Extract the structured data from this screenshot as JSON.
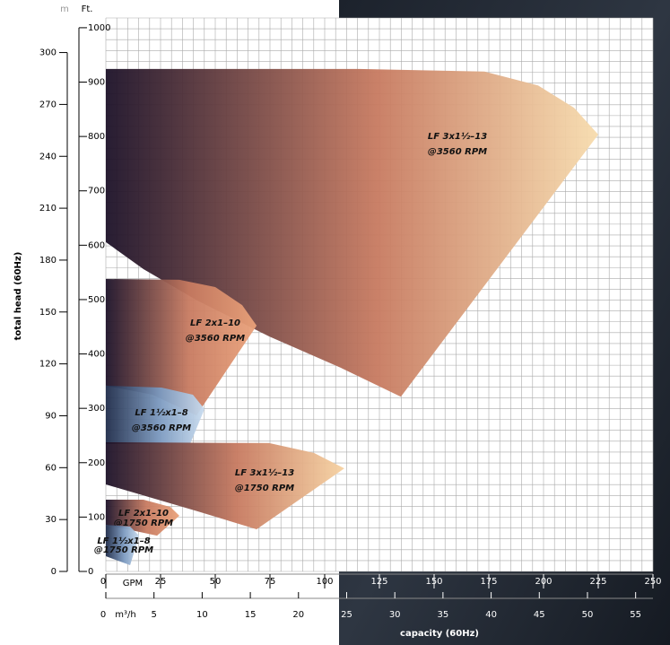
{
  "chart_data": {
    "type": "region",
    "y_label": "total head (60Hz)",
    "x_label": "capacity (60Hz)",
    "y_unit": "m",
    "y2_unit": "Ft.",
    "x_unit": "GPM",
    "x2_unit": "m³/h",
    "xlim": [
      0,
      250
    ],
    "xticks": [
      0,
      25,
      50,
      75,
      100,
      125,
      150,
      175,
      200,
      225,
      250
    ],
    "x2lim": [
      0,
      56.8
    ],
    "x2ticks": [
      0,
      5,
      10,
      15,
      20,
      25,
      30,
      35,
      40,
      45,
      50,
      55
    ],
    "ylim": [
      0,
      320
    ],
    "yticks": [
      0,
      30,
      60,
      90,
      120,
      150,
      180,
      210,
      240,
      270,
      300
    ],
    "y2lim": [
      0,
      1018
    ],
    "y2ticks": [
      0,
      100,
      200,
      300,
      400,
      500,
      600,
      700,
      800,
      900,
      1000
    ],
    "grid": true,
    "series": [
      {
        "name": "LF 3x1½–13",
        "speed": "@3560 RPM",
        "color": "#f7dcae",
        "x": [
          0,
          115.6,
          173,
          197.5,
          214,
          225,
          134.8,
          107.4,
          74.6,
          41.8,
          17.2,
          0
        ],
        "y": [
          290.5,
          290.5,
          289,
          281,
          268,
          252.6,
          101,
          117.7,
          135.9,
          156.6,
          174.8,
          190.4
        ]
      },
      {
        "name": "LF 2x1–10",
        "speed": "@3560 RPM",
        "color": "#eaa27a",
        "x": [
          0,
          33.6,
          50,
          62.3,
          68.9,
          41.4,
          21.3,
          0
        ],
        "y": [
          169.1,
          168.6,
          164.4,
          154,
          142.1,
          90.2,
          102.2,
          107.4
        ]
      },
      {
        "name": "LF 1½x1–8",
        "speed": "@3560 RPM",
        "color": "#c9dcef",
        "x": [
          0,
          25.4,
          39.8,
          45.1,
          38.5,
          0
        ],
        "y": [
          107.4,
          106.3,
          102.2,
          93.9,
          73.7,
          73.7
        ]
      },
      {
        "name": "LF 3x1½–13",
        "speed": "@1750 RPM",
        "color": "#f6d2a2",
        "x": [
          0,
          74.6,
          95.1,
          109,
          68.9,
          41.8,
          0
        ],
        "y": [
          74.7,
          74.2,
          68.5,
          59.6,
          24.4,
          34.8,
          50.3
        ]
      },
      {
        "name": "LF 2x1–10",
        "speed": "@1750 RPM",
        "color": "#eaa27a",
        "x": [
          0,
          17.2,
          29.5,
          33.6,
          23.4,
          0
        ],
        "y": [
          41.5,
          41.5,
          37.3,
          32.2,
          20.7,
          27
        ]
      },
      {
        "name": "LF 1½x1–8",
        "speed": "@1750 RPM",
        "color": "#c9dcef",
        "x": [
          0,
          11.1,
          15.2,
          11.1,
          0
        ],
        "y": [
          27,
          25.9,
          20.7,
          3.6,
          8.8
        ]
      }
    ]
  }
}
